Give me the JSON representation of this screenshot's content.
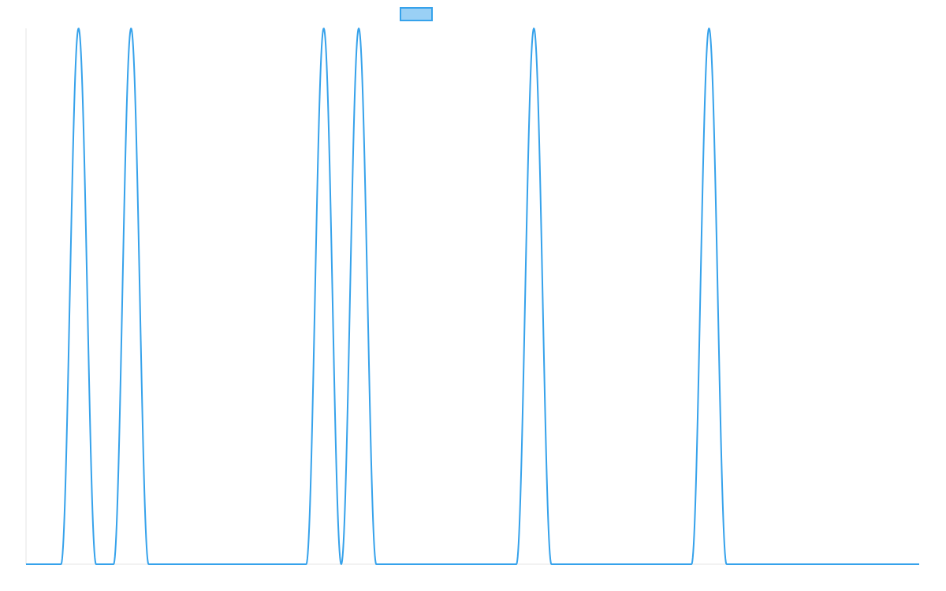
{
  "chart_data": {
    "type": "line",
    "title": "",
    "xlabel": "",
    "ylabel": "",
    "x_range": [
      0,
      51
    ],
    "y_range": [
      0,
      1
    ],
    "grid": false,
    "legend_position": "top-center",
    "series": [
      {
        "color": "#36a2eb",
        "fill": "#9ad0f5",
        "peaks": [
          {
            "center": 3.0,
            "half_width": 1.0,
            "height": 1
          },
          {
            "center": 6.0,
            "half_width": 1.0,
            "height": 1
          },
          {
            "center": 17.0,
            "half_width": 1.0,
            "height": 1
          },
          {
            "center": 19.0,
            "half_width": 1.0,
            "height": 1
          },
          {
            "center": 29.0,
            "half_width": 1.0,
            "height": 1
          },
          {
            "center": 39.0,
            "half_width": 1.0,
            "height": 1
          }
        ]
      }
    ]
  }
}
